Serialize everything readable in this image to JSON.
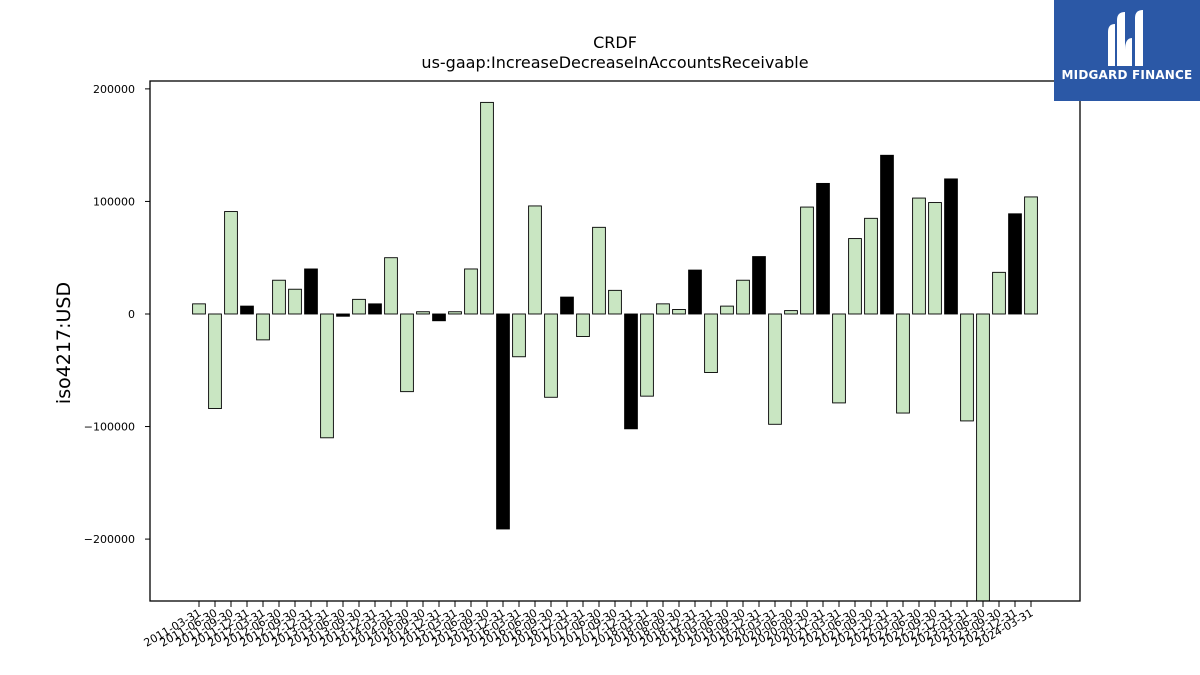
{
  "chart_data": {
    "type": "bar",
    "title": "CRDF",
    "subtitle": "us-gaap:IncreaseDecreaseInAccountsReceivable",
    "ylabel": "iso4217:USD",
    "xlabel": "",
    "ylim": [
      -255000,
      207000
    ],
    "yticks": [
      200000,
      100000,
      0,
      -100000,
      -200000
    ],
    "ytick_labels": [
      "200000",
      "100000",
      "0",
      "−100000",
      "−200000"
    ],
    "grid": false,
    "colors": {
      "light": "#c9e6c2",
      "dark": "#000000",
      "edge": "#000000"
    },
    "categories": [
      "2011-03-31",
      "2011-06-30",
      "2011-09-30",
      "2011-12-31",
      "2012-03-31",
      "2012-06-30",
      "2012-09-30",
      "2012-12-31",
      "2013-03-31",
      "2013-06-30",
      "2013-09-30",
      "2013-12-31",
      "2014-03-31",
      "2014-06-30",
      "2014-09-30",
      "2014-12-31",
      "2015-03-31",
      "2015-06-30",
      "2015-09-30",
      "2015-12-31",
      "2016-03-31",
      "2016-06-30",
      "2016-09-30",
      "2016-12-31",
      "2017-03-31",
      "2017-06-30",
      "2017-09-30",
      "2017-12-31",
      "2018-03-31",
      "2018-06-30",
      "2018-09-30",
      "2018-12-31",
      "2019-03-31",
      "2019-06-30",
      "2019-09-30",
      "2019-12-31",
      "2020-03-31",
      "2020-06-30",
      "2020-09-30",
      "2020-12-31",
      "2021-03-31",
      "2021-06-30",
      "2021-09-30",
      "2021-12-31",
      "2022-03-31",
      "2022-06-30",
      "2022-09-30",
      "2022-12-31",
      "2023-03-31",
      "2023-06-30",
      "2023-09-30",
      "2023-12-31",
      "2024-03-31"
    ],
    "values": [
      9000,
      -84000,
      91000,
      7000,
      -23000,
      30000,
      22000,
      40000,
      -110000,
      -2000,
      13000,
      9000,
      50000,
      -69000,
      2000,
      -6000,
      2000,
      40000,
      188000,
      -191000,
      -38000,
      96000,
      -74000,
      15000,
      -20000,
      77000,
      21000,
      -102000,
      -73000,
      9000,
      4000,
      39000,
      -52000,
      7000,
      30000,
      51000,
      -98000,
      3000,
      95000,
      116000,
      -79000,
      67000,
      85000,
      141000,
      -88000,
      103000,
      99000,
      120000,
      -95000,
      -255000,
      37000,
      89000,
      104000
    ],
    "highlight": [
      false,
      false,
      false,
      true,
      false,
      false,
      false,
      true,
      false,
      true,
      false,
      true,
      false,
      false,
      false,
      true,
      false,
      false,
      false,
      true,
      false,
      false,
      false,
      true,
      false,
      false,
      false,
      true,
      false,
      false,
      false,
      true,
      false,
      false,
      false,
      true,
      false,
      false,
      false,
      true,
      false,
      false,
      false,
      true,
      false,
      false,
      false,
      true,
      false,
      false,
      false,
      true,
      false
    ]
  },
  "logo": {
    "brand": "MIDGARD FINANCE",
    "icon": "midgard-logo-icon",
    "background": "#2b58a6"
  }
}
